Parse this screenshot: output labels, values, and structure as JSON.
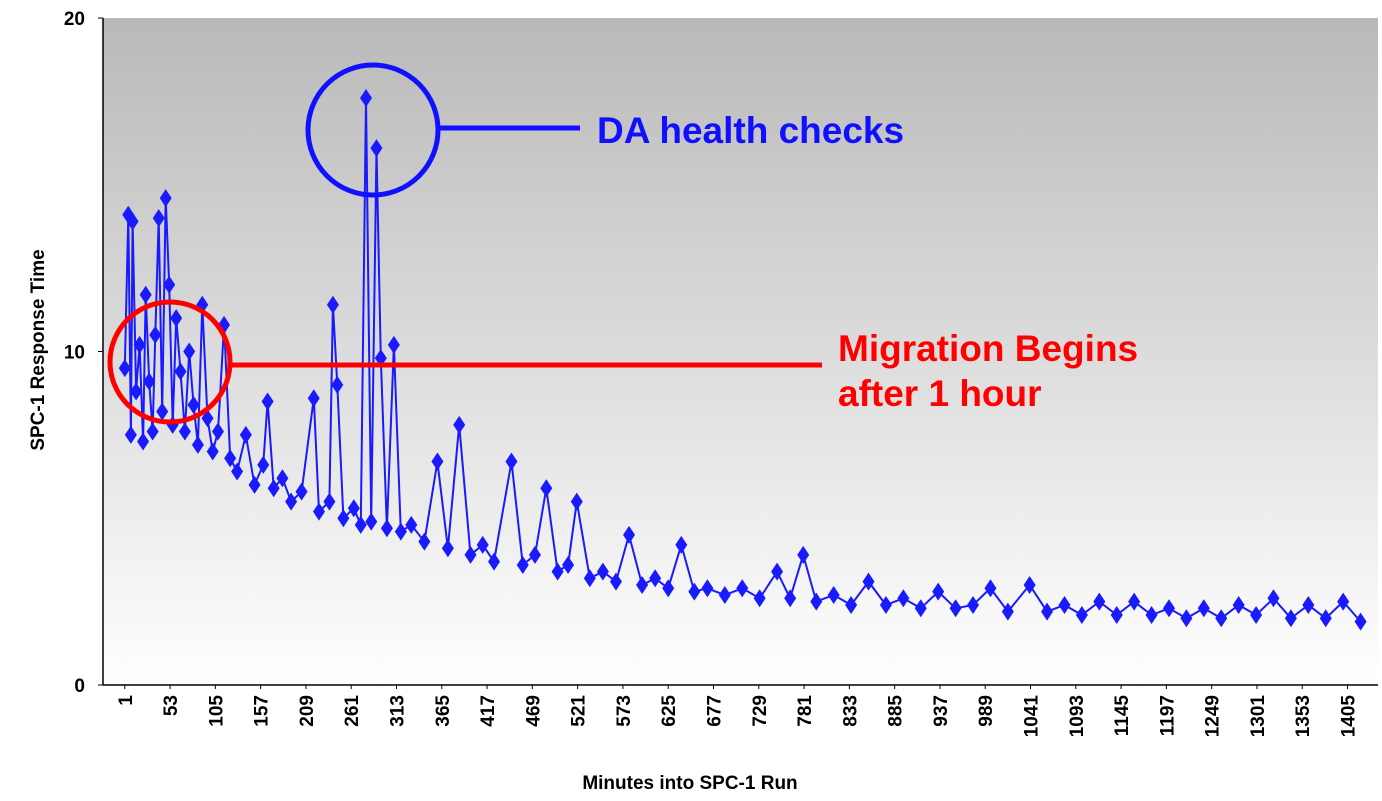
{
  "chart_data": {
    "type": "line",
    "y_label": "SPC-1 Response Time",
    "x_label": "Minutes into SPC-1 Run",
    "annotations": [
      {
        "text": "DA health checks",
        "color": "#1010ff"
      },
      {
        "text": "Migration Begins",
        "color": "#ff0000"
      },
      {
        "text": "after 1 hour",
        "color": "#ff0000"
      }
    ],
    "color": "#1a1aff",
    "xlim": [
      -24,
      1440
    ],
    "ylim": [
      0,
      20
    ],
    "yticks": [
      0,
      10,
      20
    ],
    "xticks": [
      1,
      53,
      105,
      157,
      209,
      261,
      313,
      365,
      417,
      469,
      521,
      573,
      625,
      677,
      729,
      781,
      833,
      885,
      937,
      989,
      1041,
      1093,
      1145,
      1197,
      1249,
      1301,
      1353,
      1405
    ],
    "x": [
      1,
      5,
      8,
      10,
      14,
      18,
      22,
      25,
      29,
      33,
      36,
      40,
      44,
      48,
      52,
      56,
      60,
      65,
      70,
      75,
      80,
      85,
      90,
      96,
      102,
      108,
      115,
      122,
      130,
      140,
      150,
      160,
      165,
      172,
      182,
      192,
      204,
      218,
      224,
      236,
      240,
      245,
      252,
      264,
      272,
      278,
      284,
      290,
      295,
      302,
      310,
      318,
      330,
      345,
      360,
      372,
      385,
      398,
      412,
      425,
      445,
      458,
      472,
      485,
      498,
      510,
      520,
      535,
      550,
      565,
      580,
      595,
      610,
      625,
      640,
      655,
      670,
      690,
      710,
      730,
      750,
      765,
      780,
      795,
      815,
      835,
      855,
      875,
      895,
      915,
      935,
      955,
      975,
      995,
      1015,
      1040,
      1060,
      1080,
      1100,
      1120,
      1140,
      1160,
      1180,
      1200,
      1220,
      1240,
      1260,
      1280,
      1300,
      1320,
      1340,
      1360,
      1380,
      1400,
      1420
    ],
    "values": [
      9.5,
      14.1,
      7.5,
      13.9,
      8.8,
      10.2,
      7.3,
      11.7,
      9.1,
      7.6,
      10.5,
      14.0,
      8.2,
      14.6,
      12.0,
      7.8,
      11.0,
      9.4,
      7.6,
      10.0,
      8.4,
      7.2,
      11.4,
      8.0,
      7.0,
      7.6,
      10.8,
      6.8,
      6.4,
      7.5,
      6.0,
      6.6,
      8.5,
      5.9,
      6.2,
      5.5,
      5.8,
      8.6,
      5.2,
      5.5,
      11.4,
      9.0,
      5.0,
      5.3,
      4.8,
      17.6,
      4.9,
      16.1,
      9.8,
      4.7,
      10.2,
      4.6,
      4.8,
      4.3,
      6.7,
      4.1,
      7.8,
      3.9,
      4.2,
      3.7,
      6.7,
      3.6,
      3.9,
      5.9,
      3.4,
      3.6,
      5.5,
      3.2,
      3.4,
      3.1,
      4.5,
      3.0,
      3.2,
      2.9,
      4.2,
      2.8,
      2.9,
      2.7,
      2.9,
      2.6,
      3.4,
      2.6,
      3.9,
      2.5,
      2.7,
      2.4,
      3.1,
      2.4,
      2.6,
      2.3,
      2.8,
      2.3,
      2.4,
      2.9,
      2.2,
      3.0,
      2.2,
      2.4,
      2.1,
      2.5,
      2.1,
      2.5,
      2.1,
      2.3,
      2.0,
      2.3,
      2.0,
      2.4,
      2.1,
      2.6,
      2.0,
      2.4,
      2.0,
      2.5,
      1.9
    ]
  }
}
